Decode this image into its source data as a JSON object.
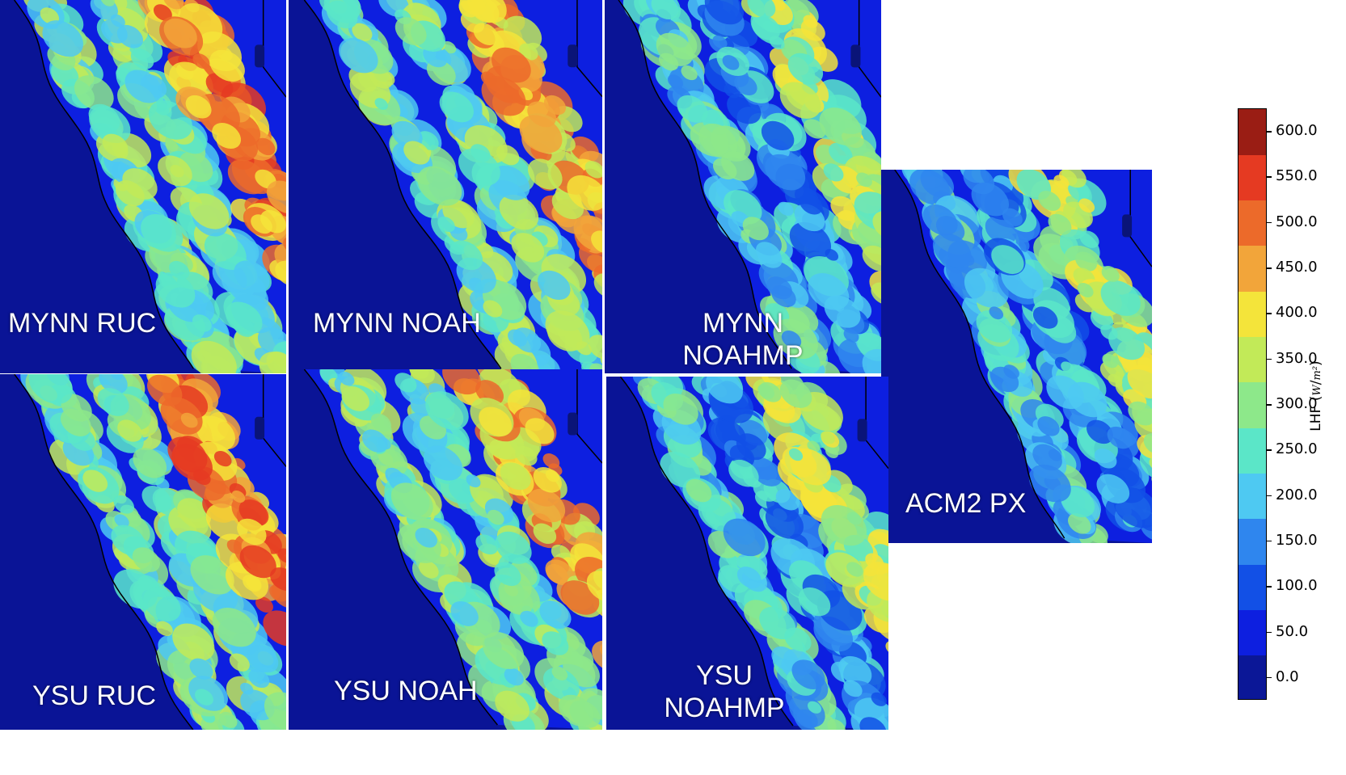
{
  "chart_data": {
    "type": "heatmap",
    "colorbar": {
      "label": "LHF",
      "unit_num": "W",
      "unit_den": "m²",
      "ticks": [
        "0.0",
        "50.0",
        "100.0",
        "150.0",
        "200.0",
        "250.0",
        "300.0",
        "350.0",
        "400.0",
        "450.0",
        "500.0",
        "550.0",
        "600.0"
      ],
      "levels": [
        0,
        50,
        100,
        150,
        200,
        250,
        300,
        350,
        400,
        450,
        500,
        550,
        600
      ],
      "colors": [
        "#0b1797",
        "#0d1fe0",
        "#1250e6",
        "#2f86ee",
        "#4ec9f2",
        "#5be6c8",
        "#8de88a",
        "#c2ea58",
        "#f4e43a",
        "#f2a53a",
        "#ec6a2a",
        "#e53a22",
        "#9a1d14"
      ]
    },
    "panels": [
      {
        "id": "mynn-ruc",
        "label_lines": [
          "MYNN RUC"
        ],
        "intensity": 0.95
      },
      {
        "id": "mynn-noah",
        "label_lines": [
          "MYNN NOAH"
        ],
        "intensity": 0.9
      },
      {
        "id": "mynn-noahmp",
        "label_lines": [
          "MYNN",
          "NOAHMP"
        ],
        "intensity": 0.55
      },
      {
        "id": "acm2-px",
        "label_lines": [
          "ACM2 PX"
        ],
        "intensity": 0.6
      },
      {
        "id": "ysu-ruc",
        "label_lines": [
          "YSU RUC"
        ],
        "intensity": 0.95
      },
      {
        "id": "ysu-noah",
        "label_lines": [
          "YSU NOAH"
        ],
        "intensity": 0.88
      },
      {
        "id": "ysu-noahmp",
        "label_lines": [
          "YSU",
          "NOAHMP"
        ],
        "intensity": 0.5
      }
    ]
  }
}
